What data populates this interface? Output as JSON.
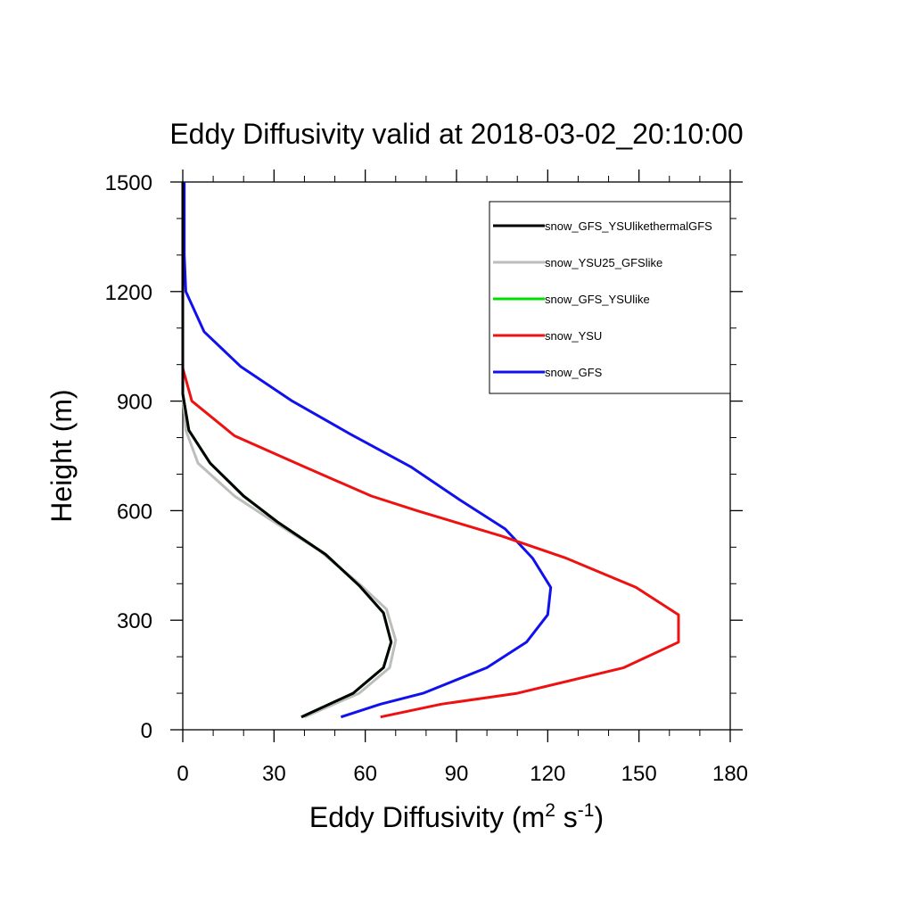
{
  "chart_data": {
    "type": "line",
    "title": "Eddy Diffusivity valid at 2018-03-02_20:10:00",
    "xlabel": {
      "main": "Eddy Diffusivity (m",
      "sup1": "2",
      "mid": " s",
      "sup2": "-1",
      "end": ")"
    },
    "ylabel": "Height (m)",
    "xlim": [
      0,
      180
    ],
    "ylim": [
      0,
      1500
    ],
    "xticks": [
      0,
      30,
      60,
      90,
      120,
      150,
      180
    ],
    "yticks": [
      0,
      300,
      600,
      900,
      1200,
      1500
    ],
    "legend_position": "top-right",
    "series": [
      {
        "name": "snow_GFS_YSUlikethermalGFS",
        "color": "#000000",
        "points": [
          [
            39,
            35
          ],
          [
            56,
            100
          ],
          [
            66,
            170
          ],
          [
            68.5,
            240
          ],
          [
            66,
            320
          ],
          [
            58,
            395
          ],
          [
            47,
            480
          ],
          [
            31,
            570
          ],
          [
            20,
            640
          ],
          [
            9,
            730
          ],
          [
            2,
            820
          ],
          [
            0,
            920
          ],
          [
            0,
            1100
          ],
          [
            0,
            1300
          ],
          [
            0,
            1500
          ]
        ]
      },
      {
        "name": "snow_YSU25_GFSlike",
        "color": "#bdbdbd",
        "points": [
          [
            40,
            35
          ],
          [
            58,
            100
          ],
          [
            68,
            170
          ],
          [
            70,
            245
          ],
          [
            67,
            330
          ],
          [
            58,
            400
          ],
          [
            45,
            490
          ],
          [
            28,
            580
          ],
          [
            17,
            640
          ],
          [
            5,
            730
          ],
          [
            1,
            820
          ],
          [
            0,
            920
          ],
          [
            0,
            1100
          ],
          [
            0,
            1300
          ],
          [
            0,
            1500
          ]
        ]
      },
      {
        "name": "snow_GFS_YSUlike",
        "color": "#00dd00",
        "points": [
          [
            39,
            35
          ],
          [
            56,
            100
          ],
          [
            66,
            170
          ],
          [
            68.5,
            240
          ],
          [
            66,
            320
          ],
          [
            58,
            395
          ],
          [
            47,
            480
          ],
          [
            31,
            570
          ],
          [
            20,
            640
          ],
          [
            9,
            730
          ],
          [
            2,
            820
          ],
          [
            0,
            920
          ],
          [
            0,
            1100
          ],
          [
            0,
            1300
          ],
          [
            0,
            1500
          ]
        ]
      },
      {
        "name": "snow_YSU",
        "color": "#ee1111",
        "points": [
          [
            65,
            35
          ],
          [
            85,
            70
          ],
          [
            110,
            100
          ],
          [
            145,
            170
          ],
          [
            163,
            240
          ],
          [
            163,
            315
          ],
          [
            149,
            390
          ],
          [
            126,
            470
          ],
          [
            105,
            530
          ],
          [
            77,
            600
          ],
          [
            62,
            640
          ],
          [
            40,
            720
          ],
          [
            17,
            805
          ],
          [
            3,
            900
          ],
          [
            0,
            990
          ],
          [
            0,
            1100
          ],
          [
            0,
            1300
          ],
          [
            0,
            1500
          ]
        ]
      },
      {
        "name": "snow_GFS",
        "color": "#1111ee",
        "points": [
          [
            52,
            35
          ],
          [
            65,
            70
          ],
          [
            79,
            100
          ],
          [
            100,
            170
          ],
          [
            113,
            240
          ],
          [
            120,
            315
          ],
          [
            121,
            390
          ],
          [
            115,
            470
          ],
          [
            106,
            550
          ],
          [
            91,
            630
          ],
          [
            75,
            720
          ],
          [
            55,
            810
          ],
          [
            36,
            900
          ],
          [
            19,
            995
          ],
          [
            7,
            1090
          ],
          [
            1,
            1200
          ],
          [
            0.5,
            1300
          ],
          [
            0.5,
            1500
          ]
        ]
      }
    ]
  }
}
